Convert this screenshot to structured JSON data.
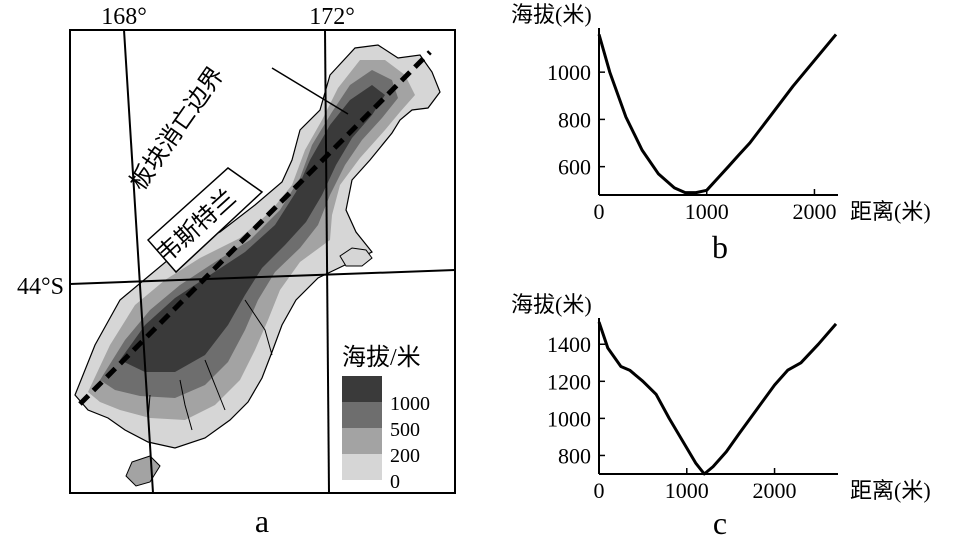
{
  "map_a": {
    "lon_labels": [
      "168°",
      "172°"
    ],
    "lat_label": "44°S",
    "annotation_boundary": "板块消亡边界",
    "annotation_region": "韦斯特兰",
    "legend": {
      "title": "海拔/米",
      "classes": [
        {
          "label": "1000",
          "color": "#3a3a3a"
        },
        {
          "label": "500",
          "color": "#6e6e6e"
        },
        {
          "label": "200",
          "color": "#a3a3a3"
        },
        {
          "label": "0",
          "color": "#d6d6d6"
        }
      ]
    },
    "caption": "a"
  },
  "chart_data": [
    {
      "type": "line",
      "caption": "b",
      "ylabel": "海拔(米)",
      "xlabel": "距离(米)",
      "x_ticks": [
        "0",
        "1000",
        "2000"
      ],
      "y_ticks": [
        "600",
        "800",
        "1000"
      ],
      "xlim": [
        0,
        2200
      ],
      "ylim": [
        480,
        1170
      ],
      "series": [
        {
          "x": [
            0,
            100,
            250,
            400,
            550,
            700,
            800,
            900,
            1000,
            1100,
            1200,
            1300,
            1400,
            1600,
            1800,
            2000,
            2200
          ],
          "y": [
            1160,
            1000,
            810,
            670,
            570,
            510,
            490,
            490,
            500,
            550,
            600,
            650,
            700,
            820,
            940,
            1050,
            1160
          ]
        }
      ]
    },
    {
      "type": "line",
      "caption": "c",
      "ylabel": "海拔(米)",
      "xlabel": "距离(米)",
      "x_ticks": [
        "0",
        "1000",
        "2000"
      ],
      "y_ticks": [
        "800",
        "1000",
        "1200",
        "1400"
      ],
      "xlim": [
        0,
        2700
      ],
      "ylim": [
        700,
        1520
      ],
      "series": [
        {
          "x": [
            0,
            100,
            250,
            350,
            500,
            650,
            800,
            950,
            1100,
            1200,
            1300,
            1450,
            1600,
            1800,
            2000,
            2150,
            2300,
            2500,
            2700
          ],
          "y": [
            1520,
            1380,
            1280,
            1260,
            1200,
            1130,
            1000,
            880,
            760,
            700,
            740,
            820,
            920,
            1050,
            1180,
            1260,
            1300,
            1400,
            1510
          ]
        }
      ]
    }
  ]
}
